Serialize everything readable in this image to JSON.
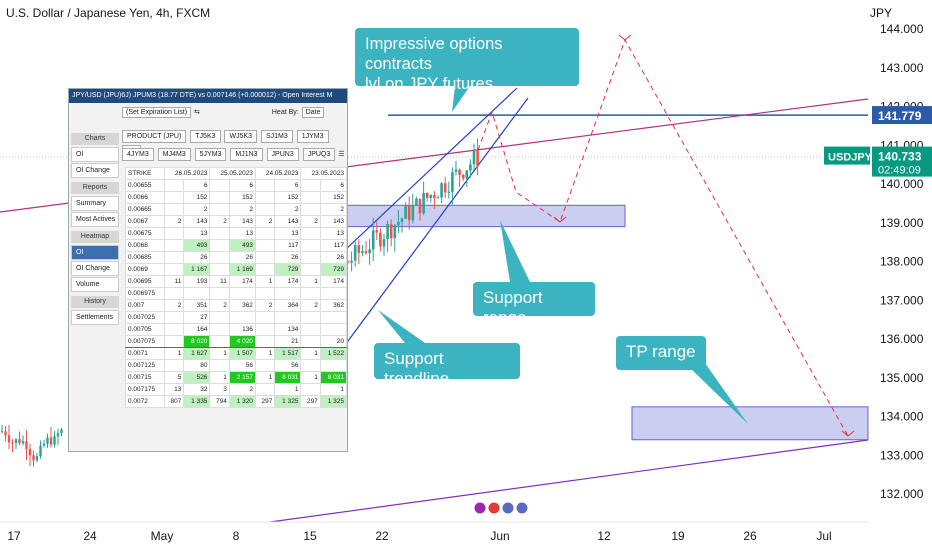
{
  "header": {
    "title": "U.S. Dollar / Japanese Yen, 4h, FXCM",
    "currency": "JPY"
  },
  "colors": {
    "up": "#26a69a",
    "down": "#ef5350",
    "callout": "#3bb3c0",
    "zone": "#9fa8e8",
    "trend": "#2340c8",
    "purple": "#b03080",
    "hline": "#2a5aa8"
  },
  "chart_data": {
    "type": "candlestick",
    "yaxis": {
      "ticks": [
        "132.000",
        "133.000",
        "134.000",
        "135.000",
        "136.000",
        "137.000",
        "138.000",
        "139.000",
        "140.000",
        "141.000",
        "142.000",
        "143.000",
        "144.000"
      ],
      "ylim": [
        131.4,
        144.5
      ]
    },
    "xaxis": {
      "ticks": [
        "17",
        "24",
        "May",
        "8",
        "15",
        "22",
        "Jun",
        "12",
        "19",
        "26",
        "Jul"
      ]
    },
    "price_tags": [
      {
        "label": "141.779",
        "value": 141.779
      },
      {
        "label": "USDJPY",
        "value": 140.733,
        "price": "140.733",
        "countdown": "02:49:09"
      }
    ],
    "hline": 141.779,
    "zones": [
      {
        "name": "Support range",
        "y": [
          138.9,
          139.45
        ]
      },
      {
        "name": "TP range",
        "y": [
          133.4,
          134.25
        ]
      }
    ],
    "annotations": [
      "Impressive options contracts lvl on JPY futures.",
      "Support range",
      "Support trendline",
      "TP range"
    ]
  },
  "callouts": {
    "options": "Impressive options contracts\n lvl on JPY futures.",
    "support_range": "Support range",
    "support_trendline": "Support trendline",
    "tp_range": "TP range"
  },
  "oi_panel": {
    "title": "JPY/USD (JPU)6J) JPUM3 (18.77 DTE) vs 0.007146 (+0.000012) - Open Interest M",
    "expiration": "(Set Expiration List)",
    "heat_by": "Heat By:",
    "heat_value": "Date",
    "product": "PRODUCT (JPU)",
    "products": [
      "TJ5K3",
      "WJ5K3",
      "SJ1M3",
      "1JYM3",
      "MJ"
    ],
    "tabs": [
      "4JYM3",
      "MJ4M3",
      "5JYM3",
      "MJ1N3",
      "JPUN3",
      "JPUQ3"
    ],
    "side": {
      "charts": "Charts",
      "oi": "OI",
      "oi_change": "OI Change",
      "reports": "Reports",
      "summary": "Summary",
      "most_actives": "Most Actives",
      "heatmap": "Heatmap",
      "hm_oi": "OI",
      "hm_oi_change": "OI Change",
      "hm_volume": "Volume",
      "history": "History",
      "settlements": "Settlements"
    },
    "columns": [
      "STRIKE",
      "26.05.2023",
      "25.05.2023",
      "24.05.2023",
      "23.05.2023"
    ],
    "rows": [
      [
        "0.00655",
        "",
        "6",
        "",
        "6",
        "",
        "6",
        "",
        "6"
      ],
      [
        "0.0066",
        "",
        "152",
        "",
        "152",
        "",
        "152",
        "",
        "152"
      ],
      [
        "0.00665",
        "",
        "2",
        "",
        "2",
        "",
        "2",
        "",
        "2"
      ],
      [
        "0.0067",
        "2",
        "143",
        "2",
        "143",
        "2",
        "143",
        "2",
        "143"
      ],
      [
        "0.00675",
        "",
        "13",
        "",
        "13",
        "",
        "13",
        "",
        "13"
      ],
      [
        "0.0068",
        "",
        "493",
        "",
        "493",
        "",
        "117",
        "",
        "117"
      ],
      [
        "0.00685",
        "",
        "26",
        "",
        "26",
        "",
        "26",
        "",
        "26"
      ],
      [
        "0.0069",
        "",
        "1 167",
        "",
        "1 169",
        "",
        "729",
        "",
        "729"
      ],
      [
        "0.00695",
        "11",
        "193",
        "11",
        "174",
        "1",
        "174",
        "1",
        "174"
      ],
      [
        "0.006975",
        "",
        "",
        "",
        "",
        "",
        "",
        "",
        ""
      ],
      [
        "0.007",
        "2",
        "351",
        "2",
        "362",
        "2",
        "364",
        "2",
        "362"
      ],
      [
        "0.007025",
        "",
        "27",
        "",
        "",
        "",
        "",
        "",
        ""
      ],
      [
        "0.00705",
        "",
        "164",
        "",
        "136",
        "",
        "134",
        "",
        ""
      ],
      [
        "0.007075",
        "",
        "8 020",
        "",
        "4 020",
        "",
        "21",
        "",
        "20"
      ],
      [
        "0.0071",
        "1",
        "1 627",
        "1",
        "1 507",
        "1",
        "1 517",
        "1",
        "1 522"
      ],
      [
        "0.007125",
        "",
        "80",
        "",
        "56",
        "",
        "56",
        "",
        ""
      ],
      [
        "0.00715",
        "5",
        "526",
        "1",
        "2 157",
        "1",
        "8 031",
        "1",
        "8 031"
      ],
      [
        "0.007175",
        "13",
        "32",
        "3",
        "2",
        "",
        "1",
        "",
        "1"
      ],
      [
        "0.0072",
        "807",
        "1 335",
        "794",
        "1 320",
        "297",
        "1 325",
        "297",
        "1 325"
      ]
    ]
  }
}
